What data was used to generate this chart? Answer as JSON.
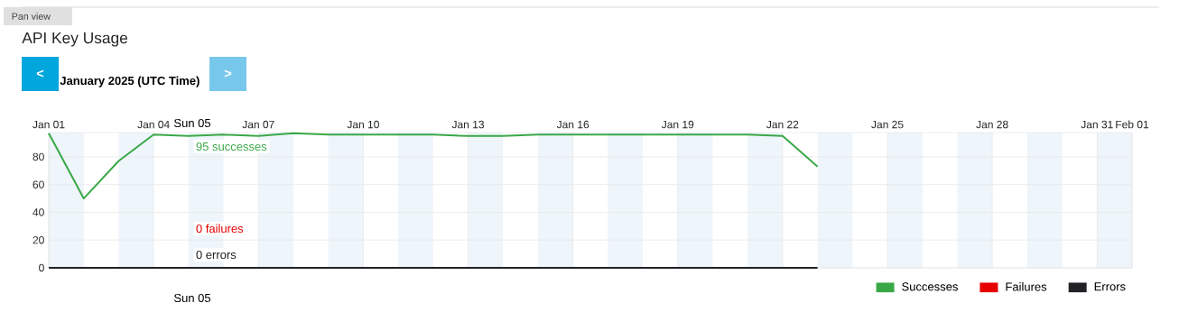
{
  "chart_data": {
    "type": "line",
    "title": "API Key Usage",
    "subtitle": "January 2025 (UTC Time)",
    "annotations": [
      "Pan view",
      "<",
      ">",
      "Sun 05",
      "95 successes",
      "0 failures",
      "0 errors",
      "Sun 05"
    ],
    "x": [
      "2025-01-01",
      "2025-01-02",
      "2025-01-03",
      "2025-01-04",
      "2025-01-05",
      "2025-01-06",
      "2025-01-07",
      "2025-01-08",
      "2025-01-09",
      "2025-01-10",
      "2025-01-11",
      "2025-01-12",
      "2025-01-13",
      "2025-01-14",
      "2025-01-15",
      "2025-01-16",
      "2025-01-17",
      "2025-01-18",
      "2025-01-19",
      "2025-01-20",
      "2025-01-21",
      "2025-01-22",
      "2025-01-23"
    ],
    "series": [
      {
        "name": "Successes",
        "color": "#3aa847",
        "values": [
          97,
          50,
          77,
          96,
          95,
          96,
          95,
          97,
          96,
          96,
          96,
          96,
          95,
          95,
          96,
          96,
          96,
          96,
          96,
          96,
          96,
          95,
          73
        ]
      },
      {
        "name": "Failures",
        "color": "#e60000",
        "values": [
          null,
          null,
          null,
          null,
          null,
          null,
          null,
          null,
          null,
          null,
          null,
          null,
          null,
          null,
          null,
          null,
          null,
          null,
          null,
          null,
          null,
          null,
          null
        ]
      },
      {
        "name": "Errors",
        "color": "#222226",
        "values": [
          0,
          0,
          0,
          0,
          0,
          0,
          0,
          0,
          0,
          0,
          0,
          0,
          0,
          0,
          0,
          0,
          0,
          0,
          0,
          0,
          0,
          0,
          0
        ]
      }
    ],
    "xlim": [
      "2025-01-01",
      "2025-02-01"
    ],
    "xticks": [
      {
        "value": "2025-01-01",
        "label": "Jan 01"
      },
      {
        "value": "2025-01-04",
        "label": "Jan 04"
      },
      {
        "value": "2025-01-07",
        "label": "Jan 07"
      },
      {
        "value": "2025-01-10",
        "label": "Jan 10"
      },
      {
        "value": "2025-01-13",
        "label": "Jan 13"
      },
      {
        "value": "2025-01-16",
        "label": "Jan 16"
      },
      {
        "value": "2025-01-19",
        "label": "Jan 19"
      },
      {
        "value": "2025-01-22",
        "label": "Jan 22"
      },
      {
        "value": "2025-01-25",
        "label": "Jan 25"
      },
      {
        "value": "2025-01-28",
        "label": "Jan 28"
      },
      {
        "value": "2025-01-31",
        "label": "Jan 31"
      },
      {
        "value": "2025-02-01",
        "label": "Feb 01"
      }
    ],
    "ylim": [
      0,
      97.5
    ],
    "yticks": [
      0,
      20,
      40,
      60,
      80
    ],
    "bands": [
      {
        "axis": "x",
        "from": "2025-01-01",
        "to": "2025-01-02",
        "color": "#eef5fb"
      },
      {
        "axis": "x",
        "from": "2025-01-03",
        "to": "2025-01-04",
        "color": "#eef5fb"
      },
      {
        "axis": "x",
        "from": "2025-01-05",
        "to": "2025-01-06",
        "color": "#eef5fb"
      },
      {
        "axis": "x",
        "from": "2025-01-07",
        "to": "2025-01-08",
        "color": "#eef5fb"
      },
      {
        "axis": "x",
        "from": "2025-01-09",
        "to": "2025-01-10",
        "color": "#eef5fb"
      },
      {
        "axis": "x",
        "from": "2025-01-11",
        "to": "2025-01-12",
        "color": "#eef5fb"
      },
      {
        "axis": "x",
        "from": "2025-01-13",
        "to": "2025-01-14",
        "color": "#eef5fb"
      },
      {
        "axis": "x",
        "from": "2025-01-15",
        "to": "2025-01-16",
        "color": "#eef5fb"
      },
      {
        "axis": "x",
        "from": "2025-01-17",
        "to": "2025-01-18",
        "color": "#eef5fb"
      },
      {
        "axis": "x",
        "from": "2025-01-19",
        "to": "2025-01-20",
        "color": "#eef5fb"
      },
      {
        "axis": "x",
        "from": "2025-01-21",
        "to": "2025-01-22",
        "color": "#eef5fb"
      },
      {
        "axis": "x",
        "from": "2025-01-23",
        "to": "2025-01-24",
        "color": "#eef5fb"
      },
      {
        "axis": "x",
        "from": "2025-01-25",
        "to": "2025-01-26",
        "color": "#eef5fb"
      },
      {
        "axis": "x",
        "from": "2025-01-27",
        "to": "2025-01-28",
        "color": "#eef5fb"
      },
      {
        "axis": "x",
        "from": "2025-01-29",
        "to": "2025-01-30",
        "color": "#eef5fb"
      },
      {
        "axis": "x",
        "from": "2025-01-31",
        "to": "2025-02-01",
        "color": "#eef5fb"
      }
    ],
    "grid": true,
    "legend": "bottom right",
    "marker": "none",
    "line_style": "solid"
  }
}
